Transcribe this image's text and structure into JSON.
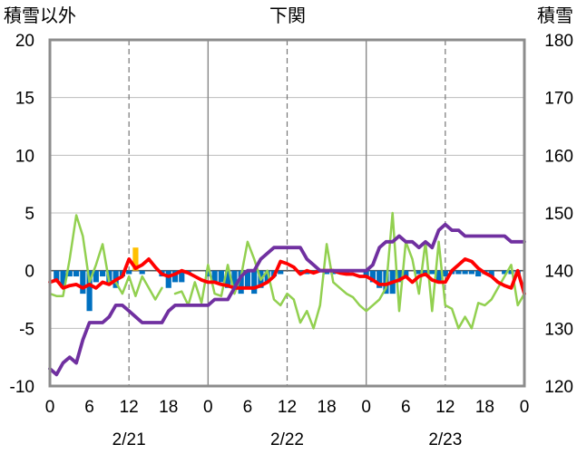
{
  "chart_data": {
    "type": "line",
    "title": "下関",
    "left_axis_label": "積雪以外",
    "right_axis_label": "積雪",
    "ylim_left": [
      -10,
      20
    ],
    "yticks_left": [
      -10,
      -5,
      0,
      5,
      10,
      15,
      20
    ],
    "ylim_right": [
      120,
      180
    ],
    "yticks_right": [
      120,
      130,
      140,
      150,
      160,
      170,
      180
    ],
    "xlim": [
      0,
      72
    ],
    "x_tick_positions": [
      0,
      6,
      12,
      18,
      24,
      30,
      36,
      42,
      48,
      54,
      60,
      66,
      72
    ],
    "x_tick_labels": [
      "0",
      "6",
      "12",
      "18",
      "0",
      "6",
      "12",
      "18",
      "0",
      "6",
      "12",
      "18",
      "0"
    ],
    "date_labels": [
      {
        "x": 12,
        "label": "2/21"
      },
      {
        "x": 36,
        "label": "2/22"
      },
      {
        "x": 60,
        "label": "2/23"
      }
    ],
    "grid": {
      "vertical_dashed_at": [
        12,
        36,
        60
      ],
      "day_separators_at": [
        24,
        48
      ],
      "zero_line": true
    },
    "series": [
      {
        "kind": "bar",
        "axis": "left",
        "color": "#0070C0",
        "x": [
          1,
          2,
          3,
          4,
          5,
          6,
          7,
          8,
          9,
          10,
          11,
          12,
          13,
          14,
          15,
          16,
          17,
          18,
          19,
          20,
          21,
          22,
          23,
          24,
          25,
          26,
          27,
          28,
          29,
          30,
          31,
          32,
          33,
          34,
          35,
          36,
          37,
          38,
          39,
          40,
          41,
          42,
          43,
          44,
          45,
          46,
          47,
          48,
          49,
          50,
          51,
          52,
          53,
          54,
          55,
          56,
          57,
          58,
          59,
          60,
          61,
          62,
          63,
          64,
          65,
          66,
          67,
          68,
          69,
          70,
          71
        ],
        "values": [
          -1.0,
          -1.5,
          -0.5,
          -0.5,
          -2.0,
          -3.5,
          -1.0,
          -0.5,
          -1.0,
          -1.5,
          -0.5,
          -0.3,
          0,
          -0.3,
          0,
          0,
          -0.5,
          -1.5,
          -1.0,
          -1.0,
          -0.3,
          0,
          0,
          -0.5,
          -1.0,
          -1.0,
          -1.5,
          -1.5,
          -2.0,
          -1.5,
          -2.0,
          -1.5,
          -1.0,
          -0.5,
          -0.3,
          0,
          0,
          -0.3,
          -0.3,
          0,
          0,
          -0.3,
          -0.3,
          -0.3,
          -0.3,
          0,
          0,
          -0.5,
          -1.0,
          -1.5,
          -2.0,
          -2.0,
          -1.0,
          -0.5,
          0,
          -0.3,
          -0.3,
          -0.3,
          -1.0,
          -0.5,
          -0.3,
          -0.3,
          -0.3,
          -0.3,
          -0.5,
          -0.3,
          -0.5,
          0,
          -0.3,
          -0.3,
          -0.3
        ]
      },
      {
        "kind": "bar",
        "axis": "left",
        "color": "#FFC000",
        "x": [
          13
        ],
        "values": [
          2.0
        ]
      },
      {
        "kind": "line",
        "axis": "left",
        "color": "#92D050",
        "x": [
          0,
          1,
          2,
          3,
          4,
          5,
          6,
          7,
          8,
          9,
          10,
          11,
          12,
          13,
          14,
          15,
          16,
          17,
          18,
          19,
          20,
          21,
          22,
          23,
          24,
          25,
          26,
          27,
          28,
          29,
          30,
          31,
          32,
          33,
          34,
          35,
          36,
          37,
          38,
          39,
          40,
          41,
          42,
          43,
          44,
          45,
          46,
          47,
          48,
          49,
          50,
          51,
          52,
          53,
          54,
          55,
          56,
          57,
          58,
          59,
          60,
          61,
          62,
          63,
          64,
          65,
          66,
          67,
          68,
          69,
          70,
          71,
          72
        ],
        "values": [
          -2.0,
          -2.2,
          -2.2,
          1.0,
          4.8,
          3.0,
          -1.0,
          0.5,
          2.3,
          -1.0,
          -1.0,
          -2.0,
          -0.5,
          -2.2,
          -0.5,
          -1.5,
          -2.5,
          -1.5,
          null,
          -2.0,
          -1.8,
          -3.0,
          -1.0,
          -2.8,
          0.5,
          -2.0,
          -2.2,
          0.5,
          -2.0,
          -0.5,
          2.5,
          1.0,
          -0.8,
          0,
          -2.5,
          -3.0,
          -2.0,
          -2.5,
          -4.5,
          -3.5,
          -5.0,
          -3.0,
          2.3,
          -1.0,
          -1.5,
          -2.0,
          -2.3,
          -3.0,
          -3.5,
          -3.0,
          -2.5,
          -1.5,
          5.0,
          -3.5,
          2.5,
          1.0,
          -2.0,
          2.5,
          -3.5,
          2.5,
          -3.0,
          -3.3,
          -5.0,
          -4.0,
          -5.0,
          -2.8,
          -3.0,
          -2.5,
          -1.5,
          -0.5,
          0.5,
          -3.0,
          -2.0
        ]
      },
      {
        "kind": "line",
        "axis": "left",
        "color": "#FF0000",
        "x": [
          0,
          1,
          2,
          3,
          4,
          5,
          6,
          7,
          8,
          9,
          10,
          11,
          12,
          13,
          14,
          15,
          16,
          17,
          18,
          19,
          20,
          21,
          22,
          23,
          24,
          25,
          26,
          27,
          28,
          29,
          30,
          31,
          32,
          33,
          34,
          35,
          36,
          37,
          38,
          39,
          40,
          41,
          42,
          43,
          44,
          45,
          46,
          47,
          48,
          49,
          50,
          51,
          52,
          53,
          54,
          55,
          56,
          57,
          58,
          59,
          60,
          61,
          62,
          63,
          64,
          65,
          66,
          67,
          68,
          69,
          70,
          71,
          72
        ],
        "values": [
          -1.0,
          -0.8,
          -1.5,
          -1.3,
          -1.2,
          -1.5,
          -1.2,
          -1.5,
          -1.0,
          -1.2,
          -0.8,
          -0.5,
          1.0,
          0.2,
          0.5,
          1.0,
          0.3,
          -0.3,
          -0.5,
          -0.3,
          0,
          -0.2,
          -0.5,
          -0.8,
          -1.0,
          -1.0,
          -1.2,
          -1.3,
          -1.5,
          -1.5,
          -1.5,
          -1.5,
          -1.3,
          -1.0,
          -0.5,
          0.8,
          0.6,
          0.3,
          -0.3,
          0,
          -0.2,
          0,
          0,
          0,
          -0.2,
          -0.3,
          -0.3,
          -0.5,
          -0.5,
          -0.8,
          -1.2,
          -1.2,
          -1.0,
          -0.8,
          -0.5,
          -1.0,
          -0.5,
          -0.3,
          -0.8,
          -1.0,
          -1.0,
          0,
          0.5,
          1.0,
          0.8,
          0.2,
          -0.2,
          -0.5,
          -1.0,
          -1.3,
          -1.5,
          0,
          -2.0
        ]
      },
      {
        "kind": "line",
        "axis": "right",
        "color": "#7030A0",
        "x": [
          0,
          1,
          2,
          3,
          4,
          5,
          6,
          7,
          8,
          9,
          10,
          11,
          12,
          13,
          14,
          15,
          16,
          17,
          18,
          19,
          20,
          21,
          22,
          23,
          24,
          25,
          26,
          27,
          28,
          29,
          30,
          31,
          32,
          33,
          34,
          35,
          36,
          37,
          38,
          39,
          40,
          41,
          42,
          43,
          44,
          45,
          46,
          47,
          48,
          49,
          50,
          51,
          52,
          53,
          54,
          55,
          56,
          57,
          58,
          59,
          60,
          61,
          62,
          63,
          64,
          65,
          66,
          67,
          68,
          69,
          70,
          71,
          72
        ],
        "values": [
          123,
          122,
          124,
          125,
          124,
          128,
          131,
          131,
          131,
          132,
          134,
          134,
          133,
          132,
          131,
          131,
          131,
          131,
          133,
          134,
          134,
          134,
          134,
          134,
          134,
          135,
          135,
          135,
          137,
          139,
          140,
          140,
          142,
          143,
          144,
          144,
          144,
          144,
          144,
          142,
          141,
          140,
          140,
          140,
          140,
          140,
          140,
          140,
          140,
          141,
          144,
          145,
          145,
          146,
          145,
          145,
          144,
          145,
          144,
          147,
          148,
          147,
          147,
          146,
          146,
          146,
          146,
          146,
          146,
          146,
          145,
          145,
          145
        ]
      }
    ]
  }
}
